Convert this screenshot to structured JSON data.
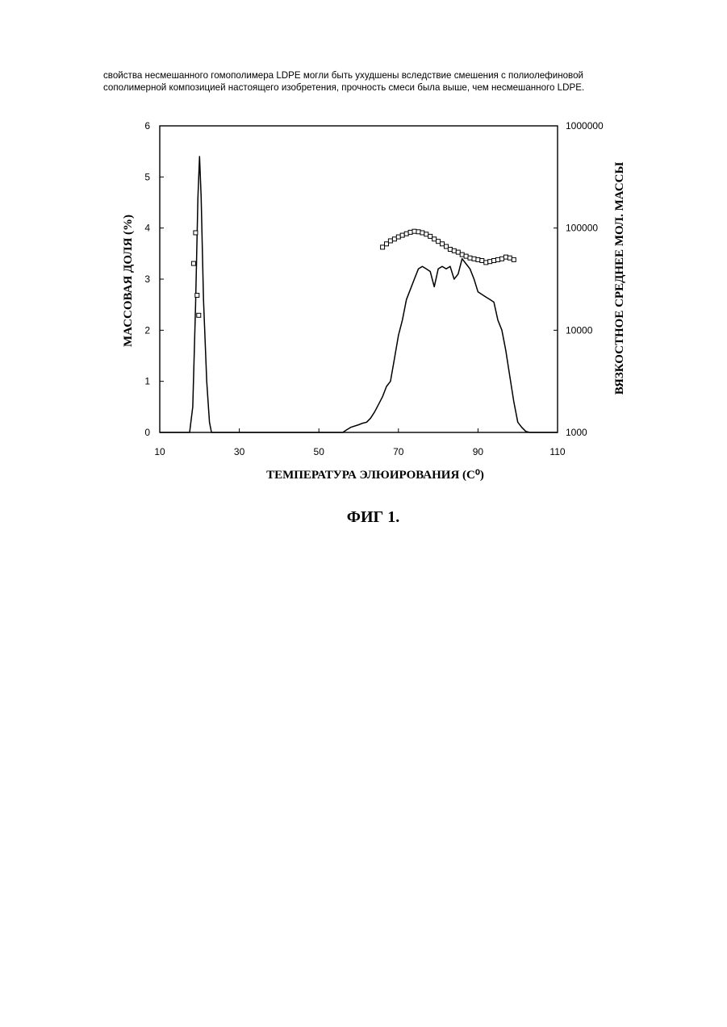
{
  "paragraph": {
    "line1": "свойства несмешанного гомополимера LDPE могли быть ухудшены вследствие смешения с полиолефиновой",
    "line2": "сополимерной композицией настоящего изобретения, прочность смеси была выше, чем несмешанного LDPE."
  },
  "figure_caption": "ФИГ 1.",
  "chart_data": {
    "type": "line",
    "xlabel": "ТЕМПЕРАТУРА ЭЛЮИРОВАНИЯ (С⁰)",
    "ylabel": "МАССОВАЯ ДОЛЯ (%)",
    "y2label": "ВЯЗКОСТНОЕ СРЕДНЕЕ МОЛ. МАССЫ",
    "xlim": [
      10,
      110
    ],
    "ylim": [
      0,
      6
    ],
    "y2lim": [
      1000,
      1000000
    ],
    "y2scale": "log",
    "x_ticks": [
      "10",
      "30",
      "50",
      "70",
      "90",
      "110"
    ],
    "y_ticks": [
      "0",
      "1",
      "2",
      "3",
      "4",
      "5",
      "6"
    ],
    "y2_ticks": [
      "1000",
      "10000",
      "100000",
      "1000000"
    ],
    "grid": false,
    "series": [
      {
        "axis": "left",
        "style": "line",
        "x": [
          10,
          17.5,
          18.3,
          19.0,
          19.6,
          20.0,
          20.4,
          21.0,
          21.8,
          22.5,
          23.0,
          30,
          40,
          50,
          56,
          57,
          58,
          60,
          61,
          62,
          63,
          64,
          65,
          66,
          67,
          68,
          69,
          70,
          71,
          72,
          73,
          74,
          75,
          76,
          77,
          78,
          79,
          80,
          81,
          82,
          83,
          84,
          85,
          86,
          87,
          88,
          89,
          90,
          91,
          92,
          93,
          94,
          95,
          96,
          97,
          98,
          99,
          100,
          101,
          102,
          103,
          110
        ],
        "y": [
          0,
          0,
          0.5,
          2.5,
          4.6,
          5.4,
          4.6,
          2.6,
          1.0,
          0.2,
          0,
          0,
          0,
          0,
          0,
          0.05,
          0.1,
          0.15,
          0.18,
          0.2,
          0.28,
          0.4,
          0.55,
          0.7,
          0.9,
          1.0,
          1.45,
          1.9,
          2.2,
          2.6,
          2.8,
          3.0,
          3.2,
          3.25,
          3.2,
          3.15,
          2.85,
          3.2,
          3.25,
          3.2,
          3.25,
          3.0,
          3.1,
          3.4,
          3.3,
          3.2,
          3.0,
          2.75,
          2.7,
          2.65,
          2.6,
          2.55,
          2.2,
          2.0,
          1.6,
          1.1,
          0.6,
          0.2,
          0.1,
          0.02,
          0,
          0
        ]
      },
      {
        "axis": "right",
        "style": "markers",
        "marker": "square",
        "x": [
          18.5,
          19.0,
          19.4,
          19.8,
          66,
          67,
          68,
          69,
          70,
          71,
          72,
          73,
          74,
          75,
          76,
          77,
          78,
          79,
          80,
          81,
          82,
          83,
          84,
          85,
          86,
          87,
          88,
          89,
          90,
          91,
          92,
          93,
          94,
          95,
          96,
          97,
          98,
          99
        ],
        "y": [
          45000,
          90000,
          22000,
          14000,
          65000,
          70000,
          75000,
          78000,
          82000,
          85000,
          88000,
          91000,
          93000,
          92000,
          90000,
          87000,
          83000,
          78000,
          74000,
          70000,
          66000,
          62000,
          60000,
          58000,
          55000,
          53000,
          51000,
          50000,
          49000,
          48000,
          46000,
          47000,
          48000,
          49000,
          50000,
          52000,
          51000,
          49000
        ]
      }
    ]
  }
}
